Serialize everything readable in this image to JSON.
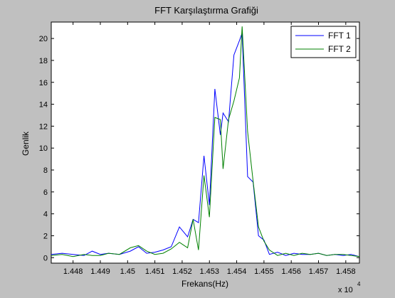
{
  "chart_data": {
    "type": "line",
    "title": "FFT Karşılaştırma Grafiği",
    "xlabel": "Frekans(Hz)",
    "ylabel": "Genlik",
    "x_multiplier_label": "x 10",
    "x_multiplier_exponent": "4",
    "xlim": [
      14472,
      14585
    ],
    "ylim": [
      -0.5,
      21.5
    ],
    "xticks": [
      14480,
      14490,
      14500,
      14510,
      14520,
      14530,
      14540,
      14550,
      14560,
      14570,
      14580
    ],
    "xtick_labels": [
      "1.448",
      "1.449",
      "1.45",
      "1.451",
      "1.452",
      "1.453",
      "1.454",
      "1.455",
      "1.456",
      "1.457",
      "1.458"
    ],
    "yticks": [
      0,
      2,
      4,
      6,
      8,
      10,
      12,
      14,
      16,
      18,
      20
    ],
    "ytick_labels": [
      "0",
      "2",
      "4",
      "6",
      "8",
      "10",
      "12",
      "14",
      "16",
      "18",
      "20"
    ],
    "legend_position": "top-right",
    "grid": false,
    "series": [
      {
        "name": "FFT 1",
        "color": "#0000ff",
        "x": [
          14472,
          14476,
          14480,
          14484,
          14487,
          14490,
          14493,
          14497,
          14501,
          14504,
          14507,
          14510,
          14513,
          14516,
          14519,
          14522,
          14524,
          14526,
          14528,
          14530,
          14532,
          14534,
          14535,
          14537,
          14539,
          14541,
          14542,
          14544,
          14546,
          14548,
          14550,
          14552,
          14555,
          14558,
          14561,
          14564,
          14567,
          14570,
          14573,
          14576,
          14579,
          14582,
          14585
        ],
        "y": [
          0.3,
          0.4,
          0.3,
          0.2,
          0.6,
          0.3,
          0.4,
          0.3,
          0.6,
          1.0,
          0.4,
          0.5,
          0.7,
          1.0,
          2.8,
          1.9,
          3.5,
          3.2,
          9.3,
          4.8,
          15.4,
          11.2,
          13.2,
          12.4,
          18.5,
          19.8,
          20.5,
          7.4,
          6.9,
          2.0,
          1.6,
          0.3,
          0.5,
          0.2,
          0.4,
          0.3,
          0.3,
          0.4,
          0.2,
          0.3,
          0.2,
          0.3,
          0.1
        ],
        "values_estimated_from": "axes"
      },
      {
        "name": "FFT 2",
        "color": "#008000",
        "x": [
          14472,
          14476,
          14480,
          14484,
          14487,
          14490,
          14493,
          14497,
          14501,
          14504,
          14507,
          14510,
          14513,
          14516,
          14519,
          14522,
          14524,
          14526,
          14528,
          14530,
          14532,
          14534,
          14535,
          14537,
          14539,
          14541,
          14542,
          14544,
          14546,
          14548,
          14550,
          14552,
          14555,
          14558,
          14561,
          14564,
          14567,
          14570,
          14573,
          14576,
          14579,
          14582,
          14585
        ],
        "y": [
          0.2,
          0.3,
          0.1,
          0.3,
          0.2,
          0.2,
          0.4,
          0.3,
          0.9,
          1.1,
          0.6,
          0.3,
          0.4,
          0.8,
          1.4,
          0.9,
          3.5,
          0.7,
          7.5,
          3.7,
          12.8,
          12.6,
          8.1,
          12.6,
          14.3,
          16.4,
          21.1,
          11.5,
          7.0,
          2.8,
          1.5,
          0.7,
          0.2,
          0.4,
          0.2,
          0.4,
          0.3,
          0.4,
          0.2,
          0.3,
          0.3,
          0.2,
          0.1
        ]
      }
    ]
  }
}
